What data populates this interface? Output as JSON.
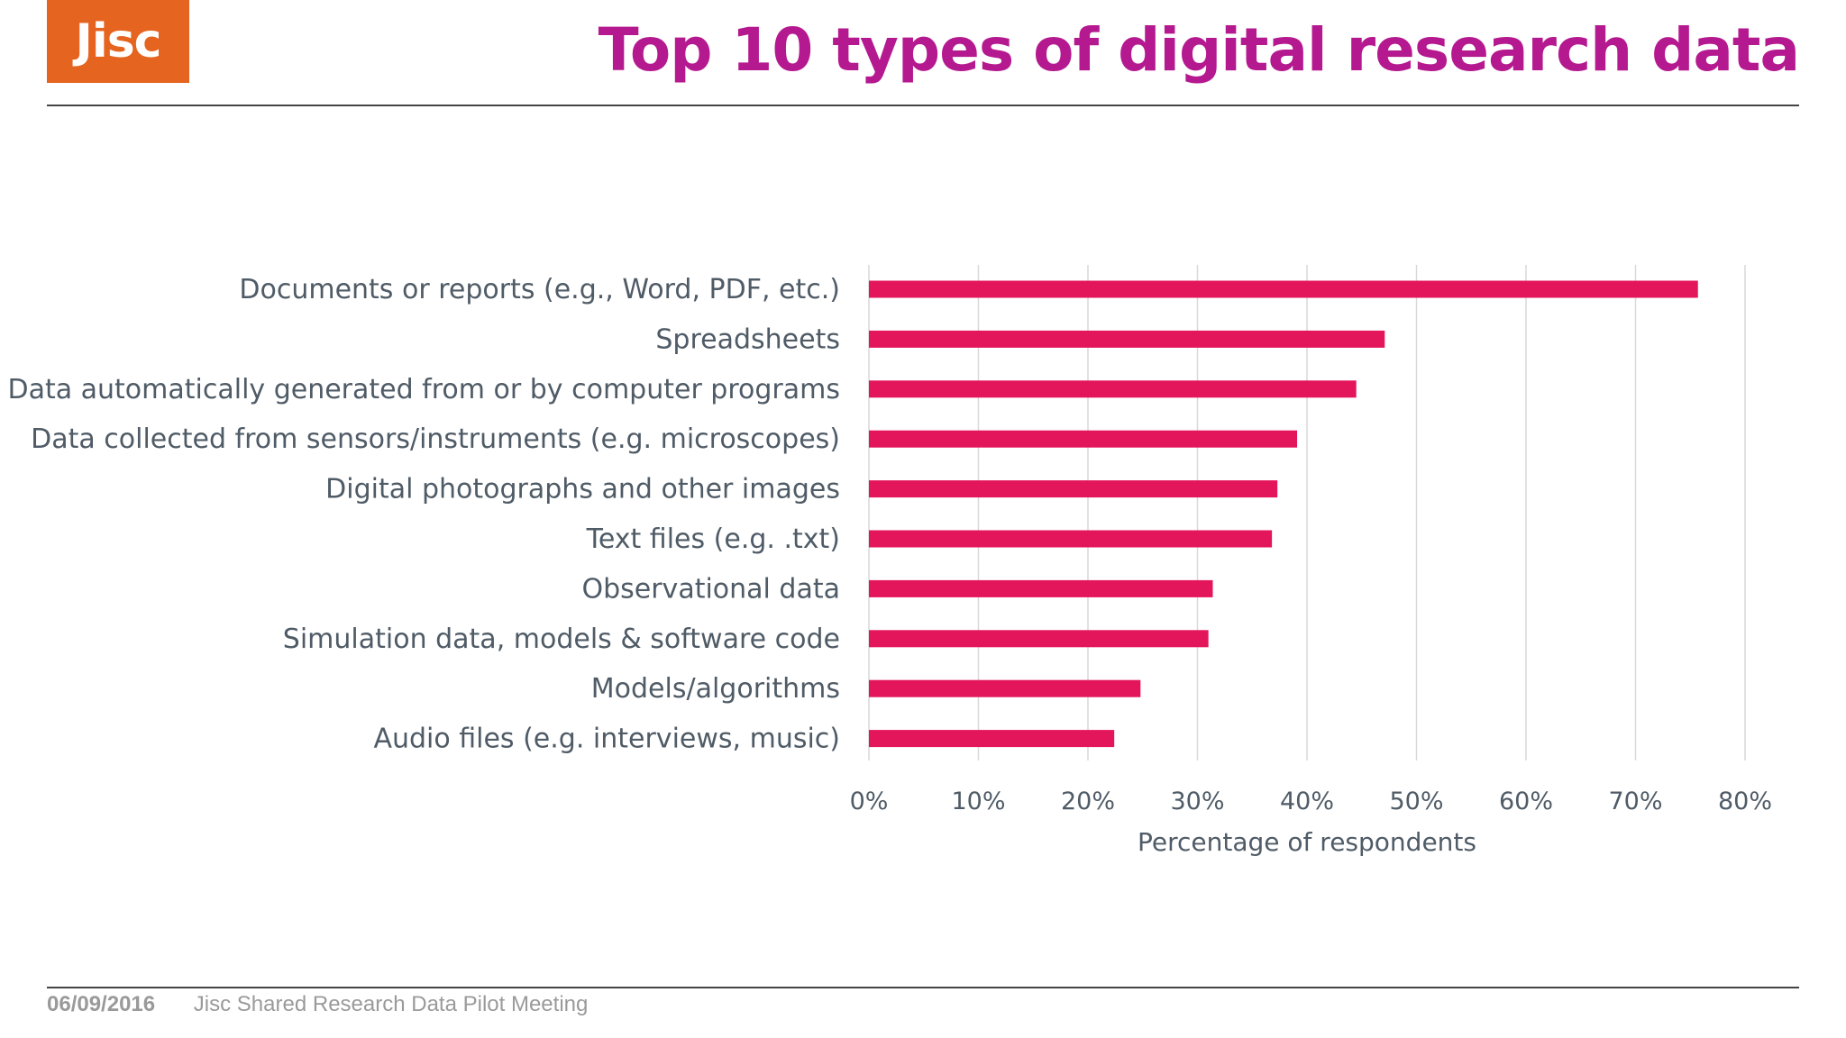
{
  "header": {
    "logo_text": "Jisc",
    "title": "Top 10 types of digital research data"
  },
  "footer": {
    "date": "06/09/2016",
    "meeting": "Jisc Shared Research Data Pilot Meeting"
  },
  "colors": {
    "bar": "#e3165b",
    "title": "#b5198f",
    "logo_bg": "#e5641f",
    "label_text": "#4f5b66",
    "grid": "#d9d9d9"
  },
  "chart_data": {
    "type": "bar",
    "orientation": "horizontal",
    "categories": [
      "Documents or reports (e.g., Word, PDF, etc.)",
      "Spreadsheets",
      "Data automatically generated from or by computer programs",
      "Data collected from sensors/instruments (e.g. microscopes)",
      "Digital photographs and other images",
      "Text files (e.g. .txt)",
      "Observational data",
      "Simulation data, models & software code",
      "Models/algorithms",
      "Audio files (e.g. interviews, music)"
    ],
    "values": [
      75.7,
      47.1,
      44.5,
      39.1,
      37.3,
      36.8,
      31.4,
      31.0,
      24.8,
      22.4
    ],
    "xlim": [
      0,
      80
    ],
    "xticks": [
      0,
      10,
      20,
      30,
      40,
      50,
      60,
      70,
      80
    ],
    "xtick_labels": [
      "0%",
      "10%",
      "20%",
      "30%",
      "40%",
      "50%",
      "60%",
      "70%",
      "80%"
    ],
    "xlabel": "Percentage of respondents",
    "ylabel": "",
    "grid": "vertical",
    "legend": "none"
  }
}
